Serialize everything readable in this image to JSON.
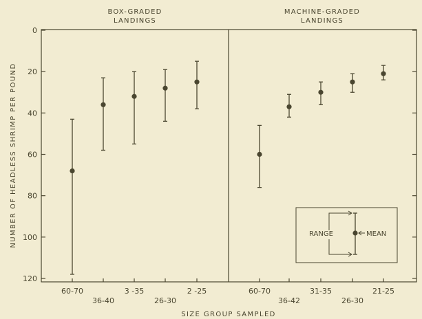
{
  "colors": {
    "background": "#f2ecd2",
    "ink": "#4a4630"
  },
  "chart_data": {
    "type": "error-bar",
    "ylabel": "NUMBER OF HEADLESS SHRIMP PER POUND",
    "xlabel": "SIZE GROUP SAMPLED",
    "ylim": [
      0,
      125
    ],
    "y_inverted": true,
    "yticks": [
      "0",
      "20",
      "40",
      "60",
      "80",
      "100",
      "120"
    ],
    "grid": false,
    "panels": [
      {
        "title_line1": "BOX-GRADED",
        "title_line2": "LANDINGS",
        "points": [
          {
            "label": "60-70",
            "mean": 68,
            "low": 43,
            "high": 118
          },
          {
            "label": "36-40",
            "mean": 36,
            "low": 23,
            "high": 58
          },
          {
            "label": "3 -35",
            "mean": 32,
            "low": 20,
            "high": 55
          },
          {
            "label": "26-30",
            "mean": 28,
            "low": 19,
            "high": 44
          },
          {
            "label": "2 -25",
            "mean": 25,
            "low": 15,
            "high": 38
          }
        ]
      },
      {
        "title_line1": "MACHINE-GRADED",
        "title_line2": "LANDINGS",
        "points": [
          {
            "label": "60-70",
            "mean": 60,
            "low": 46,
            "high": 76
          },
          {
            "label": "36-42",
            "mean": 37,
            "low": 31,
            "high": 42
          },
          {
            "label": "31-35",
            "mean": 30,
            "low": 25,
            "high": 36
          },
          {
            "label": "26-30",
            "mean": 25,
            "low": 21,
            "high": 30
          },
          {
            "label": "21-25",
            "mean": 21,
            "low": 17,
            "high": 24
          }
        ]
      }
    ],
    "legend": {
      "range_label": "RANGE",
      "mean_label": "MEAN",
      "placement": "bottom-right"
    }
  }
}
